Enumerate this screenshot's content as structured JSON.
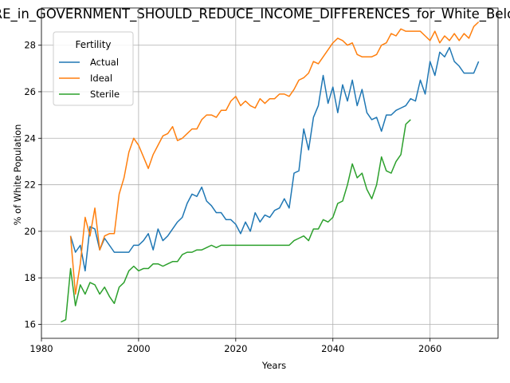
{
  "chart_data": {
    "type": "line",
    "title": "ARE_in_GOVERNMENT_SHOULD_REDUCE_INCOME_DIFFERENCES_for_White_Below",
    "xlabel": "Years",
    "ylabel": "% of White Population",
    "xlim": [
      1980,
      2074
    ],
    "ylim": [
      15.4,
      29.6
    ],
    "xticks": [
      1980,
      2000,
      2020,
      2040,
      2060
    ],
    "yticks": [
      16,
      18,
      20,
      22,
      24,
      26,
      28
    ],
    "grid": true,
    "legend": {
      "title": "Fertility",
      "placement": "top-left"
    },
    "series": [
      {
        "name": "Actual",
        "color": "#1f77b4",
        "points": [
          [
            1986,
            19.8
          ],
          [
            1987,
            19.1
          ],
          [
            1988,
            19.4
          ],
          [
            1989,
            18.3
          ],
          [
            1990,
            20.2
          ],
          [
            1991,
            20.1
          ],
          [
            1992,
            19.2
          ],
          [
            1993,
            19.7
          ],
          [
            1994,
            19.4
          ],
          [
            1995,
            19.1
          ],
          [
            1996,
            19.1
          ],
          [
            1997,
            19.1
          ],
          [
            1998,
            19.1
          ],
          [
            1999,
            19.4
          ],
          [
            2000,
            19.4
          ],
          [
            2001,
            19.6
          ],
          [
            2002,
            19.9
          ],
          [
            2003,
            19.2
          ],
          [
            2004,
            20.1
          ],
          [
            2005,
            19.6
          ],
          [
            2006,
            19.8
          ],
          [
            2007,
            20.1
          ],
          [
            2008,
            20.4
          ],
          [
            2009,
            20.6
          ],
          [
            2010,
            21.2
          ],
          [
            2011,
            21.6
          ],
          [
            2012,
            21.5
          ],
          [
            2013,
            21.9
          ],
          [
            2014,
            21.3
          ],
          [
            2015,
            21.1
          ],
          [
            2016,
            20.8
          ],
          [
            2017,
            20.8
          ],
          [
            2018,
            20.5
          ],
          [
            2019,
            20.5
          ],
          [
            2020,
            20.3
          ],
          [
            2021,
            19.9
          ],
          [
            2022,
            20.4
          ],
          [
            2023,
            20.0
          ],
          [
            2024,
            20.8
          ],
          [
            2025,
            20.4
          ],
          [
            2026,
            20.7
          ],
          [
            2027,
            20.6
          ],
          [
            2028,
            20.9
          ],
          [
            2029,
            21.0
          ],
          [
            2030,
            21.4
          ],
          [
            2031,
            21.0
          ],
          [
            2032,
            22.5
          ],
          [
            2033,
            22.6
          ],
          [
            2034,
            24.4
          ],
          [
            2035,
            23.5
          ],
          [
            2036,
            24.9
          ],
          [
            2037,
            25.4
          ],
          [
            2038,
            26.7
          ],
          [
            2039,
            25.5
          ],
          [
            2040,
            26.2
          ],
          [
            2041,
            25.1
          ],
          [
            2042,
            26.3
          ],
          [
            2043,
            25.6
          ],
          [
            2044,
            26.5
          ],
          [
            2045,
            25.4
          ],
          [
            2046,
            26.1
          ],
          [
            2047,
            25.1
          ],
          [
            2048,
            24.8
          ],
          [
            2049,
            24.9
          ],
          [
            2050,
            24.3
          ],
          [
            2051,
            25.0
          ],
          [
            2052,
            25.0
          ],
          [
            2053,
            25.2
          ],
          [
            2054,
            25.3
          ],
          [
            2055,
            25.4
          ],
          [
            2056,
            25.7
          ],
          [
            2057,
            25.6
          ],
          [
            2058,
            26.5
          ],
          [
            2059,
            25.9
          ],
          [
            2060,
            27.3
          ],
          [
            2061,
            26.7
          ],
          [
            2062,
            27.7
          ],
          [
            2063,
            27.5
          ],
          [
            2064,
            27.9
          ],
          [
            2065,
            27.3
          ],
          [
            2066,
            27.1
          ],
          [
            2067,
            26.8
          ],
          [
            2068,
            26.8
          ],
          [
            2069,
            26.8
          ],
          [
            2070,
            27.3
          ]
        ]
      },
      {
        "name": "Ideal",
        "color": "#ff7f0e",
        "points": [
          [
            1986,
            19.8
          ],
          [
            1987,
            17.3
          ],
          [
            1988,
            18.6
          ],
          [
            1989,
            20.6
          ],
          [
            1990,
            19.8
          ],
          [
            1991,
            21.0
          ],
          [
            1992,
            19.2
          ],
          [
            1993,
            19.8
          ],
          [
            1994,
            19.9
          ],
          [
            1995,
            19.9
          ],
          [
            1996,
            21.6
          ],
          [
            1997,
            22.3
          ],
          [
            1998,
            23.4
          ],
          [
            1999,
            24.0
          ],
          [
            2000,
            23.7
          ],
          [
            2001,
            23.2
          ],
          [
            2002,
            22.7
          ],
          [
            2003,
            23.3
          ],
          [
            2004,
            23.7
          ],
          [
            2005,
            24.1
          ],
          [
            2006,
            24.2
          ],
          [
            2007,
            24.5
          ],
          [
            2008,
            23.9
          ],
          [
            2009,
            24.0
          ],
          [
            2010,
            24.2
          ],
          [
            2011,
            24.4
          ],
          [
            2012,
            24.4
          ],
          [
            2013,
            24.8
          ],
          [
            2014,
            25.0
          ],
          [
            2015,
            25.0
          ],
          [
            2016,
            24.9
          ],
          [
            2017,
            25.2
          ],
          [
            2018,
            25.2
          ],
          [
            2019,
            25.6
          ],
          [
            2020,
            25.8
          ],
          [
            2021,
            25.4
          ],
          [
            2022,
            25.6
          ],
          [
            2023,
            25.4
          ],
          [
            2024,
            25.3
          ],
          [
            2025,
            25.7
          ],
          [
            2026,
            25.5
          ],
          [
            2027,
            25.7
          ],
          [
            2028,
            25.7
          ],
          [
            2029,
            25.9
          ],
          [
            2030,
            25.9
          ],
          [
            2031,
            25.8
          ],
          [
            2032,
            26.1
          ],
          [
            2033,
            26.5
          ],
          [
            2034,
            26.6
          ],
          [
            2035,
            26.8
          ],
          [
            2036,
            27.3
          ],
          [
            2037,
            27.2
          ],
          [
            2038,
            27.5
          ],
          [
            2039,
            27.8
          ],
          [
            2040,
            28.1
          ],
          [
            2041,
            28.3
          ],
          [
            2042,
            28.2
          ],
          [
            2043,
            28.0
          ],
          [
            2044,
            28.1
          ],
          [
            2045,
            27.6
          ],
          [
            2046,
            27.5
          ],
          [
            2047,
            27.5
          ],
          [
            2048,
            27.5
          ],
          [
            2049,
            27.6
          ],
          [
            2050,
            28.0
          ],
          [
            2051,
            28.1
          ],
          [
            2052,
            28.5
          ],
          [
            2053,
            28.4
          ],
          [
            2054,
            28.7
          ],
          [
            2055,
            28.6
          ],
          [
            2056,
            28.6
          ],
          [
            2057,
            28.6
          ],
          [
            2058,
            28.6
          ],
          [
            2059,
            28.4
          ],
          [
            2060,
            28.2
          ],
          [
            2061,
            28.6
          ],
          [
            2062,
            28.1
          ],
          [
            2063,
            28.4
          ],
          [
            2064,
            28.2
          ],
          [
            2065,
            28.5
          ],
          [
            2066,
            28.2
          ],
          [
            2067,
            28.5
          ],
          [
            2068,
            28.3
          ],
          [
            2069,
            28.8
          ],
          [
            2070,
            29.0
          ]
        ]
      },
      {
        "name": "Sterile",
        "color": "#2ca02c",
        "points": [
          [
            1984,
            16.1
          ],
          [
            1985,
            16.2
          ],
          [
            1986,
            18.4
          ],
          [
            1987,
            16.8
          ],
          [
            1988,
            17.7
          ],
          [
            1989,
            17.3
          ],
          [
            1990,
            17.8
          ],
          [
            1991,
            17.7
          ],
          [
            1992,
            17.3
          ],
          [
            1993,
            17.6
          ],
          [
            1994,
            17.2
          ],
          [
            1995,
            16.9
          ],
          [
            1996,
            17.6
          ],
          [
            1997,
            17.8
          ],
          [
            1998,
            18.3
          ],
          [
            1999,
            18.5
          ],
          [
            2000,
            18.3
          ],
          [
            2001,
            18.4
          ],
          [
            2002,
            18.4
          ],
          [
            2003,
            18.6
          ],
          [
            2004,
            18.6
          ],
          [
            2005,
            18.5
          ],
          [
            2006,
            18.6
          ],
          [
            2007,
            18.7
          ],
          [
            2008,
            18.7
          ],
          [
            2009,
            19.0
          ],
          [
            2010,
            19.1
          ],
          [
            2011,
            19.1
          ],
          [
            2012,
            19.2
          ],
          [
            2013,
            19.2
          ],
          [
            2014,
            19.3
          ],
          [
            2015,
            19.4
          ],
          [
            2016,
            19.3
          ],
          [
            2017,
            19.4
          ],
          [
            2018,
            19.4
          ],
          [
            2019,
            19.4
          ],
          [
            2020,
            19.4
          ],
          [
            2021,
            19.4
          ],
          [
            2022,
            19.4
          ],
          [
            2023,
            19.4
          ],
          [
            2024,
            19.4
          ],
          [
            2025,
            19.4
          ],
          [
            2026,
            19.4
          ],
          [
            2027,
            19.4
          ],
          [
            2028,
            19.4
          ],
          [
            2029,
            19.4
          ],
          [
            2030,
            19.4
          ],
          [
            2031,
            19.4
          ],
          [
            2032,
            19.6
          ],
          [
            2033,
            19.7
          ],
          [
            2034,
            19.8
          ],
          [
            2035,
            19.6
          ],
          [
            2036,
            20.1
          ],
          [
            2037,
            20.1
          ],
          [
            2038,
            20.5
          ],
          [
            2039,
            20.4
          ],
          [
            2040,
            20.6
          ],
          [
            2041,
            21.2
          ],
          [
            2042,
            21.3
          ],
          [
            2043,
            22.0
          ],
          [
            2044,
            22.9
          ],
          [
            2045,
            22.3
          ],
          [
            2046,
            22.5
          ],
          [
            2047,
            21.8
          ],
          [
            2048,
            21.4
          ],
          [
            2049,
            22.0
          ],
          [
            2050,
            23.2
          ],
          [
            2051,
            22.6
          ],
          [
            2052,
            22.5
          ],
          [
            2053,
            23.0
          ],
          [
            2054,
            23.3
          ],
          [
            2055,
            24.6
          ],
          [
            2056,
            24.8
          ]
        ]
      }
    ]
  }
}
